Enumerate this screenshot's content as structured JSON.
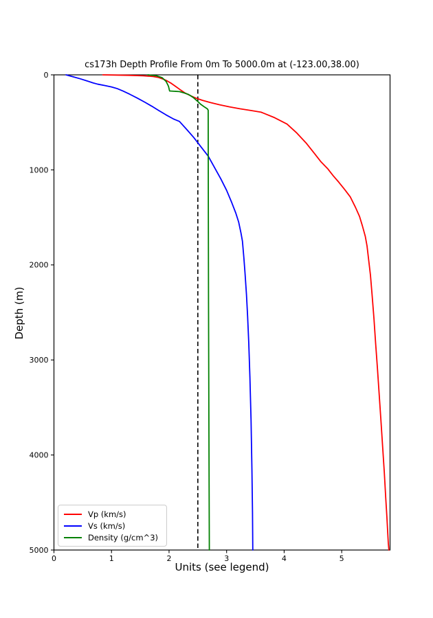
{
  "chart_data": {
    "type": "line",
    "title": "cs173h Depth Profile From 0m To 5000.0m at (-123.00,38.00)",
    "xlabel": "Units (see legend)",
    "ylabel": "Depth (m)",
    "xlim": [
      0,
      5.84
    ],
    "ylim": [
      0,
      5000
    ],
    "y_axis_inverted": true,
    "grid": false,
    "x_ticks": [
      "0",
      "1",
      "2",
      "3",
      "4",
      "5"
    ],
    "x_tick_values": [
      0,
      1,
      2,
      3,
      4,
      5
    ],
    "y_ticks": [
      "0",
      "1000",
      "2000",
      "3000",
      "4000",
      "5000"
    ],
    "y_tick_values": [
      0,
      1000,
      2000,
      3000,
      4000,
      5000
    ],
    "reference_line": {
      "x": 2.5,
      "style": "dashed",
      "color": "#000000"
    },
    "legend_position": "lower left",
    "series": [
      {
        "name": "Vp (km/s)",
        "color": "#ff0000",
        "points_value_depth": [
          [
            0.85,
            0
          ],
          [
            1.3,
            5
          ],
          [
            1.55,
            10
          ],
          [
            1.72,
            17
          ],
          [
            1.82,
            28
          ],
          [
            1.9,
            45
          ],
          [
            1.97,
            65
          ],
          [
            2.04,
            90
          ],
          [
            2.11,
            120
          ],
          [
            2.19,
            155
          ],
          [
            2.27,
            188
          ],
          [
            2.36,
            215
          ],
          [
            2.46,
            243
          ],
          [
            2.58,
            268
          ],
          [
            2.72,
            292
          ],
          [
            2.88,
            315
          ],
          [
            3.05,
            337
          ],
          [
            3.23,
            357
          ],
          [
            3.42,
            375
          ],
          [
            3.6,
            393
          ],
          [
            3.82,
            447
          ],
          [
            4.05,
            518
          ],
          [
            4.22,
            612
          ],
          [
            4.38,
            716
          ],
          [
            4.52,
            822
          ],
          [
            4.64,
            915
          ],
          [
            4.76,
            990
          ],
          [
            4.85,
            1060
          ],
          [
            4.95,
            1130
          ],
          [
            5.05,
            1205
          ],
          [
            5.15,
            1285
          ],
          [
            5.24,
            1395
          ],
          [
            5.31,
            1490
          ],
          [
            5.36,
            1590
          ],
          [
            5.41,
            1700
          ],
          [
            5.44,
            1800
          ],
          [
            5.47,
            1955
          ],
          [
            5.5,
            2110
          ],
          [
            5.53,
            2330
          ],
          [
            5.56,
            2560
          ],
          [
            5.59,
            2830
          ],
          [
            5.62,
            3080
          ],
          [
            5.65,
            3350
          ],
          [
            5.68,
            3620
          ],
          [
            5.71,
            3900
          ],
          [
            5.74,
            4180
          ],
          [
            5.765,
            4450
          ],
          [
            5.785,
            4650
          ],
          [
            5.8,
            4820
          ],
          [
            5.81,
            4930
          ],
          [
            5.82,
            5000
          ]
        ]
      },
      {
        "name": "Vs (km/s)",
        "color": "#0000ff",
        "points_value_depth": [
          [
            0.21,
            0
          ],
          [
            0.33,
            20
          ],
          [
            0.46,
            42
          ],
          [
            0.58,
            65
          ],
          [
            0.68,
            85
          ],
          [
            0.76,
            98
          ],
          [
            0.88,
            112
          ],
          [
            1.0,
            127
          ],
          [
            1.1,
            145
          ],
          [
            1.2,
            170
          ],
          [
            1.32,
            205
          ],
          [
            1.45,
            245
          ],
          [
            1.58,
            288
          ],
          [
            1.7,
            330
          ],
          [
            1.82,
            375
          ],
          [
            1.95,
            422
          ],
          [
            2.08,
            465
          ],
          [
            2.18,
            490
          ],
          [
            2.3,
            570
          ],
          [
            2.43,
            660
          ],
          [
            2.56,
            762
          ],
          [
            2.68,
            855
          ],
          [
            2.79,
            975
          ],
          [
            2.9,
            1095
          ],
          [
            3.0,
            1215
          ],
          [
            3.09,
            1345
          ],
          [
            3.16,
            1455
          ],
          [
            3.21,
            1550
          ],
          [
            3.25,
            1665
          ],
          [
            3.275,
            1750
          ],
          [
            3.3,
            1925
          ],
          [
            3.32,
            2085
          ],
          [
            3.345,
            2310
          ],
          [
            3.365,
            2540
          ],
          [
            3.385,
            2820
          ],
          [
            3.405,
            3180
          ],
          [
            3.425,
            3640
          ],
          [
            3.44,
            4150
          ],
          [
            3.45,
            4600
          ],
          [
            3.455,
            5000
          ]
        ]
      },
      {
        "name": "Density (g/cm^3)",
        "color": "#008000",
        "points_value_depth": [
          [
            1.63,
            0
          ],
          [
            1.78,
            10
          ],
          [
            1.88,
            30
          ],
          [
            1.95,
            70
          ],
          [
            1.99,
            120
          ],
          [
            2.005,
            158
          ],
          [
            2.01,
            170
          ],
          [
            2.18,
            176
          ],
          [
            2.26,
            190
          ],
          [
            2.34,
            207
          ],
          [
            2.42,
            238
          ],
          [
            2.49,
            275
          ],
          [
            2.55,
            310
          ],
          [
            2.62,
            340
          ],
          [
            2.665,
            358
          ],
          [
            2.68,
            372
          ],
          [
            2.682,
            1200
          ],
          [
            2.686,
            2400
          ],
          [
            2.692,
            3600
          ],
          [
            2.7,
            5000
          ]
        ]
      }
    ]
  }
}
